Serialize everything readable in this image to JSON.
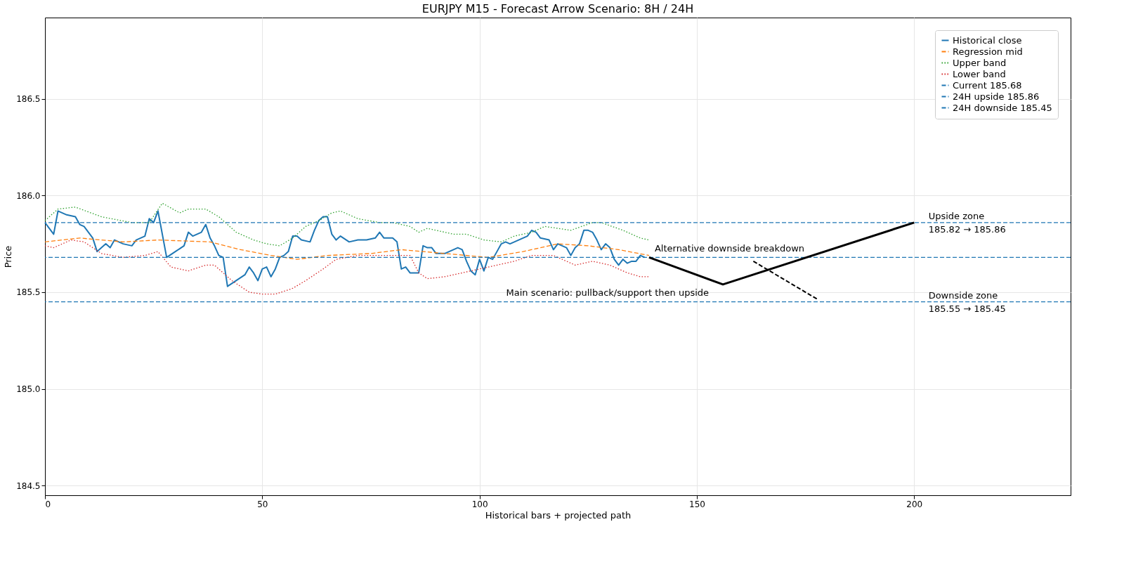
{
  "chart_data": {
    "type": "line",
    "title": "EURJPY M15 - Forecast Arrow Scenario: 8H / 24H",
    "xlabel": "Historical bars + projected path",
    "ylabel": "Price",
    "xlim": [
      0,
      236
    ],
    "ylim": [
      184.45,
      186.92
    ],
    "xticks": [
      0,
      50,
      100,
      150,
      200
    ],
    "yticks": [
      184.5,
      {
        "value": 185,
        "label": "185.0"
      },
      185.5,
      {
        "value": 186,
        "label": "186.0"
      },
      186.5
    ],
    "grid": true,
    "legend": "top right",
    "series": [
      {
        "name": "Historical close",
        "color": "#1f77b4",
        "line_style": "solid",
        "x": [
          0,
          2,
          3,
          5,
          7,
          8,
          9,
          11,
          12,
          14,
          15,
          16,
          18,
          20,
          21,
          23,
          24,
          25,
          26,
          28,
          30,
          32,
          33,
          34,
          36,
          37,
          38,
          39,
          40,
          41,
          42,
          44,
          46,
          47,
          48,
          49,
          50,
          51,
          52,
          53,
          54,
          55,
          56,
          57,
          58,
          59,
          61,
          62,
          63,
          64,
          65,
          66,
          67,
          68,
          70,
          72,
          74,
          76,
          77,
          78,
          80,
          81,
          82,
          83,
          84,
          86,
          87,
          88,
          89,
          90,
          92,
          94,
          95,
          96,
          97,
          98,
          99,
          100,
          101,
          102,
          103,
          104,
          105,
          106,
          107,
          109,
          111,
          112,
          113,
          114,
          116,
          117,
          118,
          120,
          121,
          122,
          123,
          124,
          125,
          126,
          127,
          128,
          129,
          130,
          131,
          132,
          133,
          134,
          135,
          136,
          137,
          138
        ],
        "values": [
          185.86,
          185.8,
          185.92,
          185.9,
          185.89,
          185.85,
          185.84,
          185.78,
          185.71,
          185.75,
          185.73,
          185.77,
          185.75,
          185.74,
          185.77,
          185.79,
          185.88,
          185.86,
          185.92,
          185.68,
          185.71,
          185.74,
          185.81,
          185.79,
          185.81,
          185.85,
          185.78,
          185.74,
          185.69,
          185.68,
          185.53,
          185.56,
          185.59,
          185.63,
          185.6,
          185.56,
          185.62,
          185.63,
          185.58,
          185.62,
          185.68,
          185.69,
          185.71,
          185.79,
          185.79,
          185.77,
          185.76,
          185.82,
          185.87,
          185.89,
          185.89,
          185.8,
          185.77,
          185.79,
          185.76,
          185.77,
          185.77,
          185.78,
          185.81,
          185.78,
          185.78,
          185.76,
          185.62,
          185.63,
          185.6,
          185.6,
          185.74,
          185.73,
          185.73,
          185.7,
          185.7,
          185.72,
          185.73,
          185.72,
          185.66,
          185.61,
          185.59,
          185.67,
          185.61,
          185.68,
          185.67,
          185.71,
          185.75,
          185.76,
          185.75,
          185.77,
          185.79,
          185.82,
          185.81,
          185.78,
          185.77,
          185.72,
          185.75,
          185.73,
          185.69,
          185.73,
          185.75,
          185.82,
          185.82,
          185.81,
          185.77,
          185.72,
          185.75,
          185.73,
          185.67,
          185.64,
          185.67,
          185.65,
          185.66,
          185.66,
          185.69,
          185.68
        ]
      },
      {
        "name": "Regression mid",
        "color": "#ff7f0e",
        "line_style": "dashed",
        "x": [
          0,
          8,
          18,
          26,
          38,
          45,
          52,
          58,
          65,
          75,
          82,
          92,
          102,
          110,
          118,
          125,
          132,
          139
        ],
        "values": [
          185.76,
          185.78,
          185.76,
          185.77,
          185.76,
          185.72,
          185.69,
          185.67,
          185.69,
          185.7,
          185.72,
          185.7,
          185.68,
          185.71,
          185.75,
          185.74,
          185.72,
          185.69
        ]
      },
      {
        "name": "Upper band",
        "color": "#2ca02c",
        "line_style": "dotted",
        "x": [
          0,
          3,
          7,
          13,
          20,
          24,
          27,
          31,
          33,
          37,
          40,
          44,
          48,
          51,
          54,
          57,
          60,
          63,
          66,
          68,
          72,
          77,
          80,
          84,
          86,
          88,
          94,
          97,
          101,
          105,
          108,
          112,
          115,
          121,
          126,
          128,
          133,
          137,
          139
        ],
        "values": [
          185.87,
          185.93,
          185.94,
          185.89,
          185.86,
          185.86,
          185.96,
          185.91,
          185.93,
          185.93,
          185.89,
          185.81,
          185.77,
          185.75,
          185.74,
          185.78,
          185.84,
          185.87,
          185.91,
          185.92,
          185.88,
          185.86,
          185.86,
          185.84,
          185.81,
          185.83,
          185.8,
          185.8,
          185.77,
          185.76,
          185.79,
          185.81,
          185.84,
          185.82,
          185.86,
          185.86,
          185.82,
          185.78,
          185.77
        ]
      },
      {
        "name": "Lower band",
        "color": "#d62728",
        "line_style": "dotted",
        "x": [
          0,
          2,
          6,
          9,
          13,
          18,
          23,
          26,
          29,
          33,
          37,
          39,
          43,
          47,
          50,
          53,
          57,
          60,
          64,
          67,
          72,
          80,
          84,
          86,
          88,
          92,
          98,
          102,
          108,
          112,
          117,
          122,
          126,
          130,
          134,
          137,
          139
        ],
        "values": [
          185.74,
          185.73,
          185.77,
          185.76,
          185.7,
          185.68,
          185.69,
          185.71,
          185.63,
          185.61,
          185.64,
          185.64,
          185.56,
          185.5,
          185.49,
          185.49,
          185.52,
          185.56,
          185.62,
          185.67,
          185.69,
          185.69,
          185.69,
          185.6,
          185.57,
          185.58,
          185.61,
          185.63,
          185.66,
          185.69,
          185.69,
          185.64,
          185.66,
          185.64,
          185.6,
          185.58,
          185.58
        ]
      },
      {
        "color": "#000000",
        "line_style": "solid",
        "x": [
          139,
          156,
          200
        ],
        "values": [
          185.68,
          185.54,
          185.86
        ]
      },
      {
        "color": "#000000",
        "line_style": "dashed",
        "x": [
          163,
          178
        ],
        "values": [
          185.66,
          185.46
        ]
      }
    ],
    "ref_lines": [
      {
        "axis": "y",
        "value": 185.68,
        "label": "Current 185.68",
        "color": "#1f77b4",
        "line_style": "dashed"
      },
      {
        "axis": "y",
        "value": 185.86,
        "label": "24H upside 185.86",
        "color": "#1f77b4",
        "line_style": "dashed"
      },
      {
        "axis": "y",
        "value": 185.45,
        "label": "24H downside 185.45",
        "color": "#1f77b4",
        "line_style": "dashed"
      }
    ],
    "annotations": [
      {
        "text": "Main scenario: pullback/support then upside",
        "x": 156,
        "y": 185.54
      },
      {
        "text": "Alternative downside breakdown",
        "x": 139,
        "y": 185.69
      },
      {
        "text": "Upside zone\n185.82 → 185.86",
        "x": 202,
        "y": 185.86
      },
      {
        "text": "Downside zone\n185.55 → 185.45",
        "x": 202,
        "y": 185.45
      }
    ]
  }
}
